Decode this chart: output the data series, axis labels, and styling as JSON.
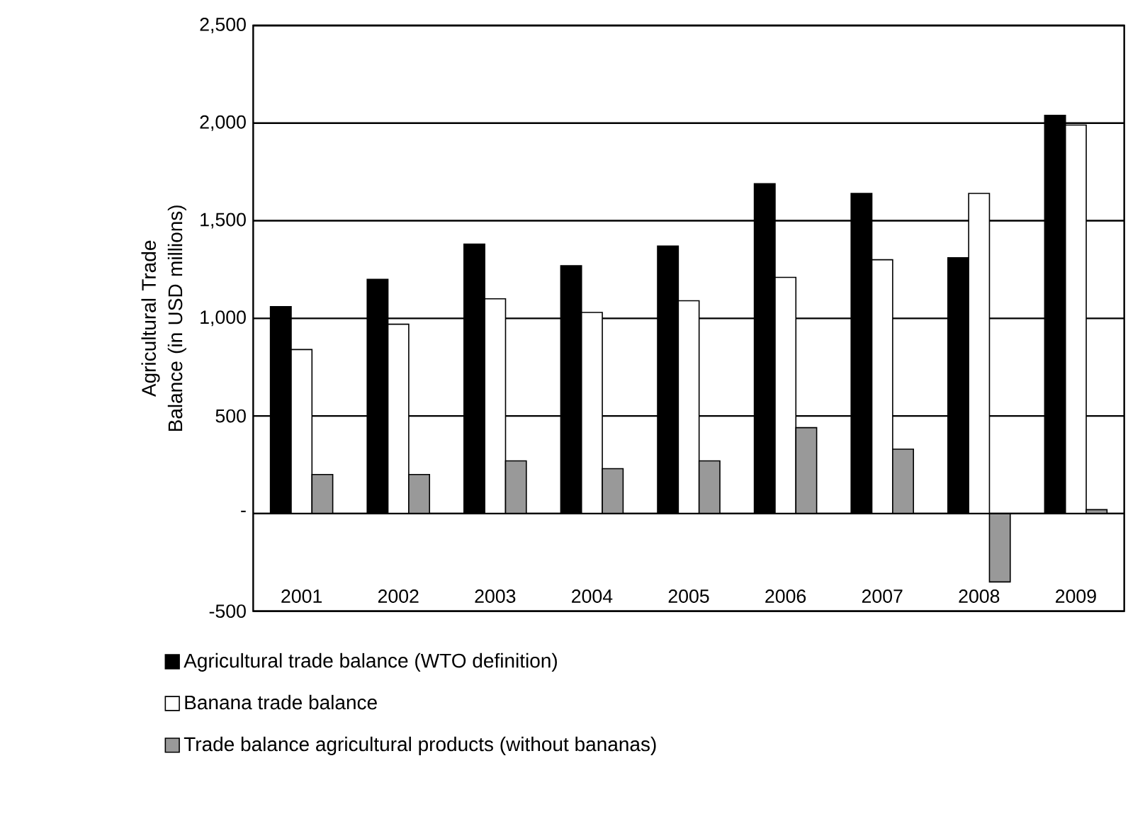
{
  "chart_data": {
    "type": "bar",
    "ylabel": "Agricultural Trade Balance (in USD millions)",
    "categories": [
      "2001",
      "2002",
      "2003",
      "2004",
      "2005",
      "2006",
      "2007",
      "2008",
      "2009"
    ],
    "series": [
      {
        "name": "Agricultural trade balance (WTO definition)",
        "color": "#000000",
        "values": [
          1060,
          1200,
          1380,
          1270,
          1370,
          1690,
          1640,
          1310,
          2040
        ]
      },
      {
        "name": "Banana trade balance",
        "color": "#ffffff",
        "values": [
          840,
          970,
          1100,
          1030,
          1090,
          1210,
          1300,
          1640,
          1990
        ]
      },
      {
        "name": "Trade balance agricultural products (without bananas)",
        "color": "#999999",
        "values": [
          200,
          200,
          270,
          230,
          270,
          440,
          330,
          -350,
          20
        ]
      }
    ],
    "ylim": [
      -500,
      2500
    ],
    "yticks": [
      -500,
      {
        "value": 0,
        "label": "-"
      },
      500,
      {
        "value": 1000,
        "label": "1,000"
      },
      {
        "value": 1500,
        "label": "1,500"
      },
      {
        "value": 2000,
        "label": "2,000"
      },
      {
        "value": 2500,
        "label": "2,500"
      }
    ],
    "grid": "y",
    "legend": "bottom"
  }
}
